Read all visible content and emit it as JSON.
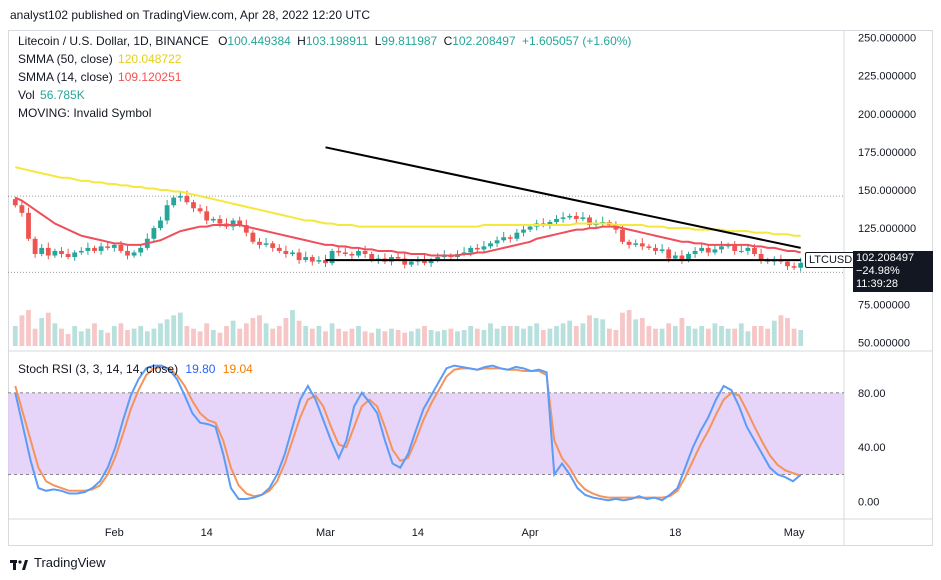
{
  "publisher": "analyst102 published on TradingView.com, Apr 28, 2022 12:20 UTC",
  "legend": {
    "title": "Litecoin / U.S. Dollar, 1D, BINANCE",
    "o_label": "O",
    "o_value": "100.449384",
    "h_label": "H",
    "h_value": "103.198911",
    "l_label": "L",
    "l_value": "99.811987",
    "c_label": "C",
    "c_value": "102.208497",
    "change": "+1.605057 (+1.60%)",
    "sma50_label": "SMMA (50, close)",
    "sma50_value": "120.048722",
    "sma14_label": "SMMA (14, close)",
    "sma14_value": "109.120251",
    "vol_label": "Vol",
    "vol_value": "56.785K",
    "moving": "MOVING: Invalid Symbol",
    "stoch_label": "Stoch RSI (3, 3, 14, 14, close)",
    "stoch_k": "19.80",
    "stoch_d": "19.04"
  },
  "price_tag": {
    "ticker": "LTCUSD",
    "price": "102.208497",
    "pct": "−24.98%",
    "countdown": "11:39:28"
  },
  "colors": {
    "up": "#26a69a",
    "down": "#ef5350",
    "sma50": "#f5e73c",
    "sma14": "#ef4e5a",
    "stoch_k": "#5b9cf6",
    "stoch_d": "#f4945c",
    "band": "#e1c9f7",
    "trend": "#000000"
  },
  "footer": {
    "brand": "TradingView"
  },
  "chart_data": [
    {
      "type": "candlestick",
      "title": "Litecoin / U.S. Dollar, 1D, BINANCE",
      "x_ticks": [
        "Feb",
        "14",
        "Mar",
        "14",
        "Apr",
        "18",
        "May"
      ],
      "y_ticks": [
        "250.000000",
        "225.000000",
        "200.000000",
        "175.000000",
        "150.000000",
        "125.000000",
        "100.000000",
        "75.000000",
        "50.000000"
      ],
      "ylim": [
        45,
        255
      ],
      "close": [
        140,
        135,
        118,
        108,
        112,
        107,
        110,
        108,
        106,
        109,
        110,
        112,
        110,
        113,
        112,
        114,
        110,
        107,
        109,
        112,
        118,
        125,
        130,
        140,
        145,
        146,
        142,
        138,
        136,
        130,
        131,
        128,
        126,
        130,
        127,
        122,
        116,
        114,
        115,
        112,
        110,
        108,
        109,
        104,
        106,
        103,
        104,
        102,
        110,
        109,
        108,
        107,
        110,
        108,
        104,
        105,
        103,
        106,
        105,
        101,
        103,
        104,
        102,
        104,
        106,
        107,
        106,
        108,
        109,
        112,
        111,
        113,
        115,
        117,
        119,
        118,
        122,
        124,
        126,
        128,
        127,
        129,
        131,
        132,
        133,
        131,
        132,
        127,
        128,
        129,
        127,
        124,
        116,
        114,
        115,
        113,
        112,
        110,
        111,
        105,
        107,
        104,
        108,
        110,
        112,
        109,
        111,
        113,
        114,
        110,
        110,
        112,
        108,
        104,
        103,
        104,
        103,
        100,
        99,
        102
      ],
      "sma50": [
        165,
        164,
        163,
        162,
        161,
        160,
        159,
        158,
        158,
        157,
        156,
        156,
        155,
        155,
        154,
        154,
        153,
        153,
        152,
        152,
        151,
        151,
        150,
        150,
        149,
        149,
        148,
        147,
        146,
        145,
        144,
        143,
        142,
        141,
        140,
        139,
        138,
        137,
        136,
        135,
        134,
        133,
        132,
        131,
        130,
        130,
        129,
        128,
        128,
        127,
        127,
        127,
        126,
        126,
        126,
        126,
        126,
        126,
        126,
        126,
        126,
        126,
        126,
        126,
        126,
        126,
        126,
        126,
        126,
        126,
        126,
        127,
        127,
        127,
        127,
        127,
        127,
        127,
        127,
        127,
        127,
        127,
        127,
        127,
        127,
        128,
        128,
        128,
        128,
        128,
        128,
        127,
        127,
        127,
        127,
        127,
        126,
        126,
        126,
        125,
        125,
        125,
        125,
        124,
        124,
        124,
        124,
        124,
        123,
        123,
        123,
        123,
        122,
        122,
        122,
        121,
        121,
        121,
        120,
        120
      ],
      "sma14": [
        145,
        143,
        140,
        137,
        134,
        131,
        128,
        126,
        124,
        122,
        120,
        119,
        118,
        117,
        116,
        115,
        115,
        114,
        114,
        114,
        115,
        116,
        117,
        119,
        121,
        123,
        124,
        125,
        126,
        126,
        127,
        127,
        127,
        127,
        127,
        126,
        125,
        124,
        123,
        122,
        121,
        120,
        119,
        118,
        117,
        116,
        115,
        114,
        114,
        113,
        113,
        112,
        112,
        111,
        111,
        110,
        110,
        110,
        109,
        109,
        108,
        108,
        108,
        107,
        107,
        107,
        107,
        107,
        108,
        108,
        109,
        109,
        110,
        111,
        112,
        113,
        114,
        115,
        116,
        118,
        119,
        120,
        121,
        122,
        123,
        124,
        124,
        125,
        125,
        126,
        126,
        126,
        125,
        124,
        123,
        122,
        121,
        120,
        119,
        118,
        117,
        116,
        116,
        115,
        115,
        114,
        114,
        114,
        114,
        114,
        114,
        114,
        113,
        113,
        112,
        112,
        111,
        110,
        110,
        109
      ],
      "volume": [
        60,
        68,
        72,
        58,
        66,
        70,
        62,
        58,
        54,
        60,
        56,
        58,
        62,
        57,
        55,
        60,
        62,
        57,
        58,
        60,
        56,
        58,
        62,
        65,
        68,
        70,
        60,
        58,
        56,
        62,
        57,
        55,
        60,
        64,
        58,
        62,
        66,
        68,
        62,
        58,
        60,
        66,
        72,
        64,
        60,
        58,
        60,
        56,
        62,
        58,
        56,
        58,
        60,
        56,
        55,
        58,
        56,
        58,
        57,
        55,
        56,
        58,
        60,
        57,
        56,
        57,
        58,
        56,
        57,
        60,
        58,
        57,
        62,
        58,
        60,
        60,
        60,
        58,
        60,
        62,
        57,
        58,
        60,
        62,
        64,
        60,
        62,
        68,
        66,
        65,
        58,
        57,
        70,
        72,
        65,
        66,
        60,
        58,
        58,
        62,
        60,
        66,
        60,
        58,
        60,
        58,
        62,
        60,
        58,
        58,
        62,
        56,
        60,
        60,
        58,
        64,
        68,
        66,
        58,
        57
      ],
      "trendlines": [
        {
          "from": [
            "Mar",
            178
          ],
          "to": [
            "Apr 26",
            112
          ]
        },
        {
          "from": [
            "Mar",
            104
          ],
          "to": [
            "Apr 26",
            104
          ]
        }
      ]
    },
    {
      "type": "line",
      "title": "Stoch RSI (3, 3, 14, 14, close)",
      "y_ticks": [
        "80.00",
        "40.00",
        "0.00"
      ],
      "band": [
        20,
        80
      ],
      "ylim": [
        -12,
        110
      ],
      "series": [
        {
          "name": "K",
          "values": [
            80,
            55,
            30,
            10,
            8,
            9,
            8,
            6,
            6,
            7,
            10,
            15,
            25,
            40,
            60,
            78,
            90,
            98,
            100,
            100,
            97,
            90,
            78,
            65,
            58,
            57,
            55,
            35,
            10,
            2,
            2,
            3,
            5,
            10,
            20,
            35,
            55,
            75,
            85,
            75,
            60,
            45,
            32,
            45,
            70,
            80,
            73,
            65,
            45,
            28,
            25,
            35,
            52,
            68,
            78,
            88,
            98,
            100,
            99,
            98,
            97,
            99,
            100,
            98,
            97,
            99,
            98,
            96,
            97,
            95,
            20,
            28,
            20,
            10,
            5,
            3,
            2,
            1,
            2,
            1,
            2,
            4,
            2,
            3,
            1,
            5,
            10,
            25,
            40,
            52,
            62,
            75,
            85,
            82,
            70,
            55,
            45,
            35,
            25,
            20,
            18,
            15,
            19.8
          ]
        },
        {
          "name": "D",
          "values": [
            85,
            65,
            45,
            25,
            15,
            12,
            10,
            8,
            8,
            8,
            9,
            12,
            20,
            33,
            50,
            68,
            82,
            93,
            98,
            99,
            98,
            93,
            85,
            74,
            65,
            60,
            58,
            45,
            25,
            12,
            6,
            4,
            5,
            8,
            15,
            28,
            45,
            62,
            75,
            78,
            70,
            55,
            42,
            40,
            55,
            70,
            75,
            70,
            55,
            38,
            30,
            32,
            45,
            60,
            72,
            82,
            92,
            97,
            98,
            98,
            97,
            98,
            98,
            98,
            97,
            97,
            96,
            96,
            96,
            93,
            45,
            32,
            25,
            15,
            9,
            6,
            4,
            3,
            3,
            3,
            3,
            3,
            3,
            3,
            3,
            4,
            8,
            18,
            30,
            42,
            52,
            64,
            75,
            80,
            78,
            67,
            55,
            44,
            34,
            27,
            23,
            21,
            19.04
          ]
        }
      ]
    }
  ]
}
